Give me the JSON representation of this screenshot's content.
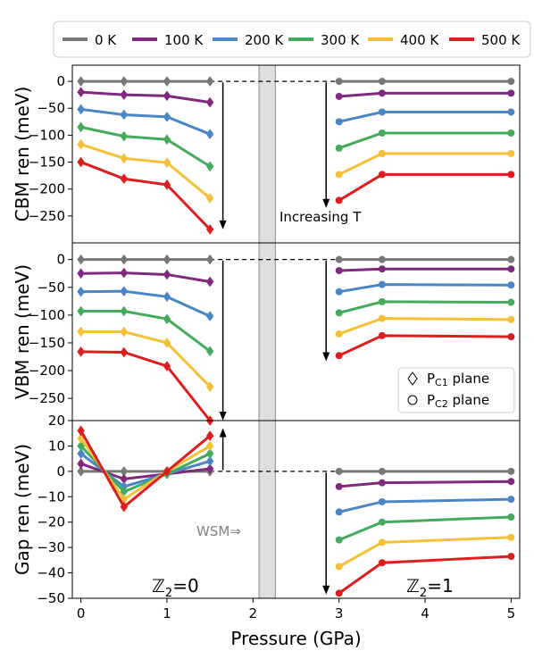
{
  "chart_data": {
    "type": "line",
    "xlabel": "Pressure (GPa)",
    "xlim": [
      -0.1,
      5.1
    ],
    "xticks": [
      "0",
      "1",
      "2",
      "3",
      "4",
      "5"
    ],
    "shaded_region": [
      2.07,
      2.26
    ],
    "grid": false,
    "legend": {
      "placement": "top",
      "entries": [
        {
          "label": "0 K",
          "color": "#777777"
        },
        {
          "label": "100 K",
          "color": "#7f2a7c"
        },
        {
          "label": "200 K",
          "color": "#4a86c6"
        },
        {
          "label": "300 K",
          "color": "#45ab5c"
        },
        {
          "label": "400 K",
          "color": "#f5c038"
        },
        {
          "label": "500 K",
          "color": "#dc1e1e"
        }
      ]
    },
    "marker_legend": {
      "placement": "lower-right",
      "entries": [
        {
          "symbol": "diamond",
          "label_main": "P",
          "label_sub": "C1",
          "label_rest": " plane"
        },
        {
          "symbol": "circle",
          "label_main": "P",
          "label_sub": "C2",
          "label_rest": " plane"
        }
      ]
    },
    "panels": [
      {
        "id": "cbm",
        "ylabel": "CBM ren (meV)",
        "ylim": [
          -300,
          30
        ],
        "yticks": [
          0,
          -50,
          -100,
          -150,
          -200,
          -250
        ],
        "tick_labels": [
          "0",
          "−50",
          "−100",
          "−150",
          "−200",
          "−250"
        ],
        "annotation": "Increasing T",
        "left": {
          "x": [
            0,
            0.5,
            1,
            1.5
          ],
          "series": [
            {
              "values": [
                0,
                0,
                0,
                0
              ]
            },
            {
              "values": [
                -20,
                -25,
                -27,
                -39
              ]
            },
            {
              "values": [
                -52,
                -62,
                -66,
                -98
              ]
            },
            {
              "values": [
                -85,
                -102,
                -108,
                -158
              ]
            },
            {
              "values": [
                -117,
                -143,
                -151,
                -217
              ]
            },
            {
              "values": [
                -150,
                -181,
                -192,
                -275
              ]
            }
          ],
          "arrow": {
            "x": 1.65,
            "from": -2,
            "to": -275
          }
        },
        "right": {
          "x": [
            3,
            3.5,
            5
          ],
          "series": [
            {
              "values": [
                0,
                0,
                0
              ]
            },
            {
              "values": [
                -28,
                -22,
                -22
              ]
            },
            {
              "values": [
                -75,
                -57,
                -57
              ]
            },
            {
              "values": [
                -124,
                -96,
                -96
              ]
            },
            {
              "values": [
                -173,
                -134,
                -134
              ]
            },
            {
              "values": [
                -221,
                -173,
                -173
              ]
            }
          ],
          "arrow": {
            "x": 2.85,
            "from": -2,
            "to": -235
          }
        }
      },
      {
        "id": "vbm",
        "ylabel": "VBM ren (meV)",
        "ylim": [
          -290,
          30
        ],
        "yticks": [
          0,
          -50,
          -100,
          -150,
          -200,
          -250
        ],
        "tick_labels": [
          "0",
          "−50",
          "−100",
          "−150",
          "−200",
          "−250"
        ],
        "left": {
          "x": [
            0,
            0.5,
            1,
            1.5
          ],
          "series": [
            {
              "values": [
                0,
                0,
                0,
                0
              ]
            },
            {
              "values": [
                -25,
                -24,
                -27,
                -40
              ]
            },
            {
              "values": [
                -58,
                -57,
                -67,
                -102
              ]
            },
            {
              "values": [
                -93,
                -93,
                -107,
                -165
              ]
            },
            {
              "values": [
                -130,
                -130,
                -150,
                -229
              ]
            },
            {
              "values": [
                -166,
                -167,
                -192,
                -290
              ]
            }
          ],
          "arrow": {
            "x": 1.65,
            "from": -2,
            "to": -290
          }
        },
        "right": {
          "x": [
            3,
            3.5,
            5
          ],
          "series": [
            {
              "values": [
                0,
                0,
                0
              ]
            },
            {
              "values": [
                -20,
                -17,
                -17
              ]
            },
            {
              "values": [
                -58,
                -45,
                -46
              ]
            },
            {
              "values": [
                -96,
                -76,
                -77
              ]
            },
            {
              "values": [
                -134,
                -106,
                -108
              ]
            },
            {
              "values": [
                -173,
                -137,
                -139
              ]
            }
          ],
          "arrow": {
            "x": 2.85,
            "from": -2,
            "to": -183
          }
        }
      },
      {
        "id": "gap",
        "ylabel": "Gap ren (meV)",
        "ylim": [
          -50,
          20
        ],
        "yticks": [
          20,
          10,
          0,
          -10,
          -20,
          -30,
          -40,
          -50
        ],
        "tick_labels": [
          "20",
          "10",
          "0",
          "−10",
          "−20",
          "−30",
          "−40",
          "−50"
        ],
        "annotation_wsm": "WSM⇒",
        "phase_left": {
          "main": "ℤ",
          "sub": "2",
          "rest": "=0"
        },
        "phase_right": {
          "main": "ℤ",
          "sub": "2",
          "rest": "=1"
        },
        "left": {
          "x": [
            0,
            0.5,
            1,
            1.5
          ],
          "series": [
            {
              "values": [
                0,
                0,
                0,
                0
              ]
            },
            {
              "values": [
                3,
                -3,
                -1,
                1
              ]
            },
            {
              "values": [
                7,
                -6,
                -1,
                4
              ]
            },
            {
              "values": [
                10,
                -8,
                -1,
                7
              ]
            },
            {
              "values": [
                13,
                -11,
                0,
                10
              ]
            },
            {
              "values": [
                16,
                -14,
                0,
                14
              ]
            }
          ],
          "arrow": {
            "x": 1.65,
            "from": 0.5,
            "to": 17
          }
        },
        "right": {
          "x": [
            3,
            3.5,
            5
          ],
          "series": [
            {
              "values": [
                0,
                0,
                0
              ]
            },
            {
              "values": [
                -6,
                -4.5,
                -4
              ]
            },
            {
              "values": [
                -16,
                -12,
                -11
              ]
            },
            {
              "values": [
                -27,
                -20,
                -18
              ]
            },
            {
              "values": [
                -37.5,
                -28,
                -26
              ]
            },
            {
              "values": [
                -48,
                -36,
                -33.5
              ]
            }
          ],
          "arrow": {
            "x": 2.85,
            "from": -0.5,
            "to": -48.5
          }
        }
      }
    ]
  }
}
